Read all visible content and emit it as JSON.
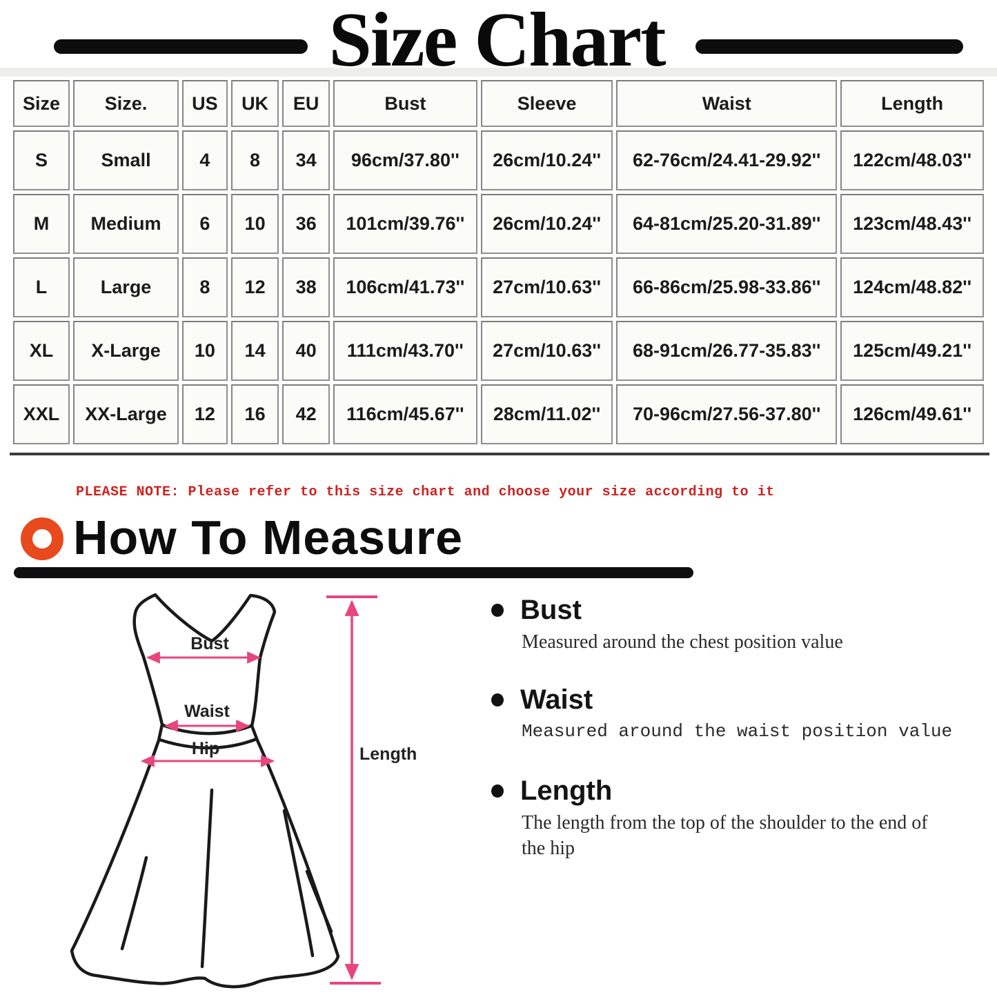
{
  "page": {
    "title": "Size Chart"
  },
  "note": {
    "text": "PLEASE NOTE: Please refer to this size chart and choose your size according to it"
  },
  "how_to_measure": {
    "title": "How To Measure"
  },
  "size_table": {
    "headers": [
      "Size",
      "Size.",
      "US",
      "UK",
      "EU",
      "Bust",
      "Sleeve",
      "Waist",
      "Length"
    ],
    "rows": [
      [
        "S",
        "Small",
        "4",
        "8",
        "34",
        "96cm/37.80''",
        "26cm/10.24''",
        "62-76cm/24.41-29.92''",
        "122cm/48.03''"
      ],
      [
        "M",
        "Medium",
        "6",
        "10",
        "36",
        "101cm/39.76''",
        "26cm/10.24''",
        "64-81cm/25.20-31.89''",
        "123cm/48.43''"
      ],
      [
        "L",
        "Large",
        "8",
        "12",
        "38",
        "106cm/41.73''",
        "27cm/10.63''",
        "66-86cm/25.98-33.86''",
        "124cm/48.82''"
      ],
      [
        "XL",
        "X-Large",
        "10",
        "14",
        "40",
        "111cm/43.70''",
        "27cm/10.63''",
        "68-91cm/26.77-35.83''",
        "125cm/49.21''"
      ],
      [
        "XXL",
        "XX-Large",
        "12",
        "16",
        "42",
        "116cm/45.67''",
        "28cm/11.02''",
        "70-96cm/27.56-37.80''",
        "126cm/49.61''"
      ]
    ]
  },
  "diagram": {
    "labels": {
      "bust": "Bust",
      "waist": "Waist",
      "hip": "Hip",
      "length": "Length"
    }
  },
  "measure_guide": {
    "items": [
      {
        "title": "Bust",
        "description": "Measured around the chest position value"
      },
      {
        "title": "Waist",
        "description": "Measured around the waist position value"
      },
      {
        "title": "Length",
        "description": "The length from the top of the shoulder to the end of the hip"
      }
    ]
  },
  "colors": {
    "accent_orange": "#e8491d",
    "measure_pink": "#e8457d",
    "note_red": "#cb2320",
    "table_border_gray": "#8f8f8f"
  }
}
